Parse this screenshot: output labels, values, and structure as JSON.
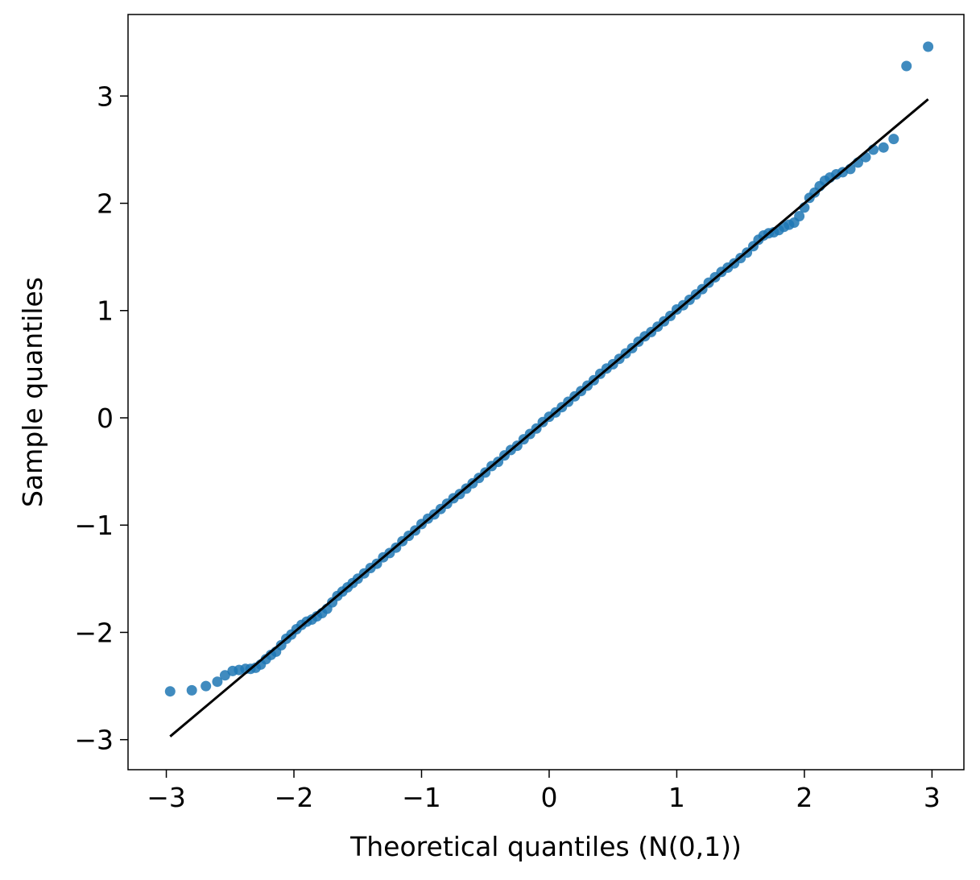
{
  "chart_data": {
    "type": "scatter",
    "title": "",
    "xlabel": "Theoretical quantiles (N(0,1))",
    "ylabel": "Sample quantiles",
    "xlim": [
      -3.3,
      3.25
    ],
    "ylim": [
      -3.28,
      3.76
    ],
    "grid": false,
    "xticks": [
      {
        "value": -3,
        "label": "−3"
      },
      {
        "value": -2,
        "label": "−2"
      },
      {
        "value": -1,
        "label": "−1"
      },
      {
        "value": 0,
        "label": "0"
      },
      {
        "value": 1,
        "label": "1"
      },
      {
        "value": 2,
        "label": "2"
      },
      {
        "value": 3,
        "label": "3"
      }
    ],
    "yticks": [
      {
        "value": -3,
        "label": "−3"
      },
      {
        "value": -2,
        "label": "−2"
      },
      {
        "value": -1,
        "label": "−1"
      },
      {
        "value": 0,
        "label": "0"
      },
      {
        "value": 1,
        "label": "1"
      },
      {
        "value": 2,
        "label": "2"
      },
      {
        "value": 3,
        "label": "3"
      }
    ],
    "colors": {
      "points": "#1f77b4",
      "reference_line": "#000000"
    },
    "reference_line": {
      "x": [
        -2.97,
        2.97
      ],
      "y": [
        -2.97,
        2.97
      ]
    },
    "points": {
      "x": [
        -2.97,
        -2.8,
        -2.69,
        -2.6,
        -2.54,
        -2.48,
        -2.43,
        -2.38,
        -2.34,
        -2.3,
        -2.26,
        -2.22,
        -2.18,
        -2.14,
        -2.1,
        -2.06,
        -2.02,
        -1.98,
        -1.94,
        -1.9,
        -1.86,
        -1.82,
        -1.78,
        -1.74,
        -1.7,
        -1.66,
        -1.62,
        -1.58,
        -1.54,
        -1.5,
        -1.45,
        -1.4,
        -1.35,
        -1.3,
        -1.25,
        -1.2,
        -1.15,
        -1.1,
        -1.05,
        -1.0,
        -0.95,
        -0.9,
        -0.85,
        -0.8,
        -0.75,
        -0.7,
        -0.65,
        -0.6,
        -0.55,
        -0.5,
        -0.45,
        -0.4,
        -0.35,
        -0.3,
        -0.25,
        -0.2,
        -0.15,
        -0.1,
        -0.05,
        0.0,
        0.05,
        0.1,
        0.15,
        0.2,
        0.25,
        0.3,
        0.35,
        0.4,
        0.45,
        0.5,
        0.55,
        0.6,
        0.65,
        0.7,
        0.75,
        0.8,
        0.85,
        0.9,
        0.95,
        1.0,
        1.05,
        1.1,
        1.15,
        1.2,
        1.25,
        1.3,
        1.35,
        1.4,
        1.45,
        1.5,
        1.55,
        1.6,
        1.64,
        1.68,
        1.72,
        1.76,
        1.8,
        1.84,
        1.88,
        1.92,
        1.96,
        2.0,
        2.04,
        2.08,
        2.12,
        2.16,
        2.2,
        2.25,
        2.3,
        2.36,
        2.42,
        2.48,
        2.54,
        2.62,
        2.7,
        2.8,
        2.97
      ],
      "y": [
        -2.55,
        -2.54,
        -2.5,
        -2.46,
        -2.4,
        -2.36,
        -2.35,
        -2.34,
        -2.34,
        -2.33,
        -2.3,
        -2.25,
        -2.21,
        -2.18,
        -2.12,
        -2.06,
        -2.02,
        -1.97,
        -1.93,
        -1.9,
        -1.88,
        -1.85,
        -1.82,
        -1.78,
        -1.72,
        -1.66,
        -1.62,
        -1.58,
        -1.54,
        -1.5,
        -1.45,
        -1.4,
        -1.36,
        -1.3,
        -1.26,
        -1.21,
        -1.15,
        -1.1,
        -1.05,
        -0.99,
        -0.94,
        -0.9,
        -0.85,
        -0.8,
        -0.75,
        -0.71,
        -0.66,
        -0.61,
        -0.56,
        -0.51,
        -0.45,
        -0.41,
        -0.35,
        -0.3,
        -0.26,
        -0.2,
        -0.15,
        -0.1,
        -0.04,
        0.01,
        0.05,
        0.1,
        0.15,
        0.2,
        0.25,
        0.3,
        0.35,
        0.41,
        0.46,
        0.5,
        0.55,
        0.6,
        0.65,
        0.71,
        0.76,
        0.8,
        0.85,
        0.9,
        0.95,
        1.01,
        1.05,
        1.1,
        1.15,
        1.2,
        1.26,
        1.31,
        1.36,
        1.4,
        1.44,
        1.49,
        1.54,
        1.6,
        1.66,
        1.7,
        1.72,
        1.73,
        1.75,
        1.78,
        1.8,
        1.82,
        1.88,
        1.96,
        2.05,
        2.1,
        2.16,
        2.21,
        2.24,
        2.27,
        2.29,
        2.32,
        2.38,
        2.43,
        2.5,
        2.52,
        2.6,
        3.28,
        3.46
      ]
    }
  }
}
